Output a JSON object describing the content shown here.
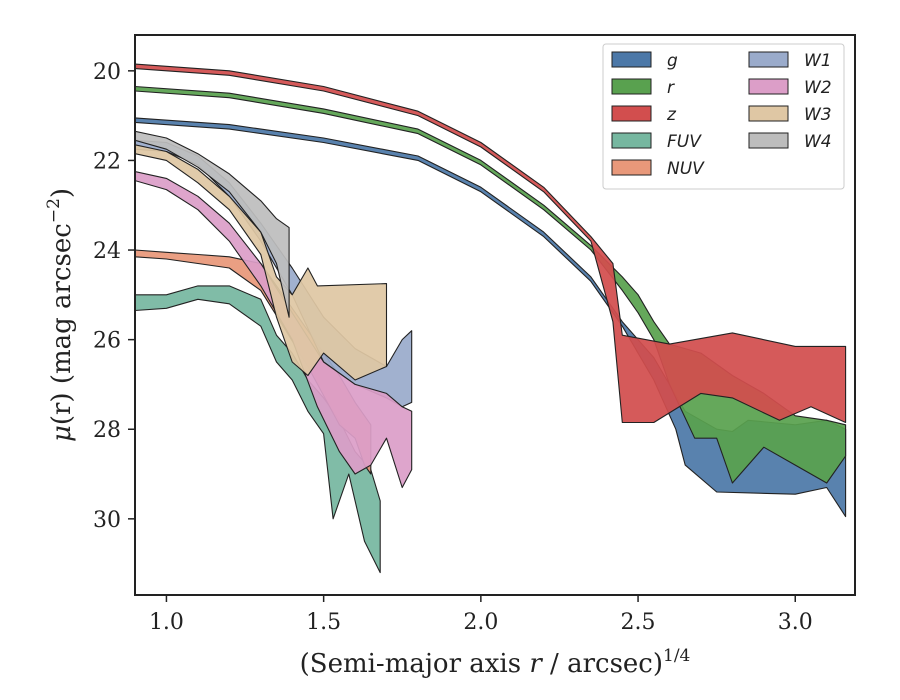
{
  "chart_data": {
    "type": "area",
    "xlabel_main": "(Semi-major axis ",
    "xlabel_var": "r",
    "xlabel_rest": " / arcsec)",
    "xlabel_sup": "1/4",
    "ylabel_mu": "μ",
    "ylabel_rest": "(r) (mag arcsec",
    "ylabel_sup": "−2",
    "ylabel_close": ")",
    "xlim": [
      0.9,
      3.19
    ],
    "ylim": [
      31.7,
      19.2
    ],
    "xticks": [
      1.0,
      1.5,
      2.0,
      2.5,
      3.0
    ],
    "xtick_labels": [
      "1.0",
      "1.5",
      "2.0",
      "2.5",
      "3.0"
    ],
    "yticks": [
      20,
      22,
      24,
      26,
      28,
      30
    ],
    "ytick_labels": [
      "20",
      "22",
      "24",
      "26",
      "28",
      "30"
    ],
    "legend_position": "top-right",
    "series": [
      {
        "name": "g",
        "color": "#4c78a8",
        "upper": [
          [
            0.9,
            21.05
          ],
          [
            1.2,
            21.2
          ],
          [
            1.5,
            21.5
          ],
          [
            1.8,
            21.9
          ],
          [
            2.0,
            22.6
          ],
          [
            2.2,
            23.6
          ],
          [
            2.35,
            24.6
          ],
          [
            2.45,
            25.6
          ],
          [
            2.55,
            26.4
          ],
          [
            2.65,
            27.6
          ],
          [
            2.75,
            28.0
          ],
          [
            2.8,
            28.05
          ],
          [
            2.85,
            27.8
          ],
          [
            3.0,
            27.9
          ],
          [
            3.1,
            27.8
          ],
          [
            3.16,
            28.0
          ]
        ],
        "lower": [
          [
            0.9,
            21.15
          ],
          [
            1.2,
            21.3
          ],
          [
            1.5,
            21.6
          ],
          [
            1.8,
            22.0
          ],
          [
            2.0,
            22.7
          ],
          [
            2.2,
            23.7
          ],
          [
            2.35,
            24.7
          ],
          [
            2.45,
            25.7
          ],
          [
            2.55,
            26.9
          ],
          [
            2.62,
            28.0
          ],
          [
            2.65,
            28.8
          ],
          [
            2.75,
            29.4
          ],
          [
            3.0,
            29.45
          ],
          [
            3.1,
            29.3
          ],
          [
            3.16,
            29.95
          ]
        ]
      },
      {
        "name": "r",
        "color": "#59a14f",
        "upper": [
          [
            0.9,
            20.35
          ],
          [
            1.2,
            20.5
          ],
          [
            1.5,
            20.85
          ],
          [
            1.8,
            21.3
          ],
          [
            2.0,
            22.0
          ],
          [
            2.2,
            23.0
          ],
          [
            2.35,
            23.9
          ],
          [
            2.45,
            24.6
          ],
          [
            2.5,
            25.0
          ],
          [
            2.55,
            25.6
          ],
          [
            2.6,
            26.1
          ],
          [
            2.7,
            26.3
          ],
          [
            2.8,
            26.8
          ],
          [
            2.9,
            27.2
          ],
          [
            3.0,
            27.7
          ],
          [
            3.1,
            27.8
          ],
          [
            3.16,
            27.9
          ]
        ],
        "lower": [
          [
            0.9,
            20.45
          ],
          [
            1.2,
            20.6
          ],
          [
            1.5,
            20.95
          ],
          [
            1.8,
            21.4
          ],
          [
            2.0,
            22.1
          ],
          [
            2.2,
            23.1
          ],
          [
            2.35,
            24.0
          ],
          [
            2.45,
            24.9
          ],
          [
            2.5,
            25.4
          ],
          [
            2.55,
            26.0
          ],
          [
            2.6,
            27.0
          ],
          [
            2.68,
            28.2
          ],
          [
            2.75,
            28.2
          ],
          [
            2.8,
            29.2
          ],
          [
            2.9,
            28.4
          ],
          [
            3.0,
            28.8
          ],
          [
            3.1,
            29.2
          ],
          [
            3.16,
            28.6
          ]
        ]
      },
      {
        "name": "z",
        "color": "#d24e4e",
        "upper": [
          [
            0.9,
            19.85
          ],
          [
            1.2,
            20.0
          ],
          [
            1.5,
            20.35
          ],
          [
            1.8,
            20.9
          ],
          [
            2.0,
            21.6
          ],
          [
            2.2,
            22.6
          ],
          [
            2.35,
            23.7
          ],
          [
            2.42,
            24.3
          ],
          [
            2.45,
            25.9
          ],
          [
            2.6,
            26.1
          ],
          [
            2.8,
            25.85
          ],
          [
            3.0,
            26.15
          ],
          [
            3.16,
            26.15
          ]
        ],
        "lower": [
          [
            0.9,
            19.95
          ],
          [
            1.2,
            20.1
          ],
          [
            1.5,
            20.45
          ],
          [
            1.8,
            21.0
          ],
          [
            2.0,
            21.7
          ],
          [
            2.2,
            22.7
          ],
          [
            2.35,
            23.8
          ],
          [
            2.42,
            25.6
          ],
          [
            2.45,
            27.85
          ],
          [
            2.55,
            27.85
          ],
          [
            2.7,
            27.2
          ],
          [
            2.8,
            27.3
          ],
          [
            2.95,
            27.8
          ],
          [
            3.05,
            27.5
          ],
          [
            3.16,
            27.85
          ]
        ]
      },
      {
        "name": "FUV",
        "color": "#76b7a0",
        "upper": [
          [
            0.9,
            25.0
          ],
          [
            1.0,
            25.0
          ],
          [
            1.1,
            24.8
          ],
          [
            1.2,
            24.8
          ],
          [
            1.3,
            25.1
          ],
          [
            1.35,
            25.9
          ],
          [
            1.4,
            26.3
          ],
          [
            1.45,
            26.9
          ],
          [
            1.5,
            27.3
          ],
          [
            1.55,
            27.8
          ],
          [
            1.6,
            28.5
          ],
          [
            1.65,
            28.9
          ],
          [
            1.68,
            29.6
          ]
        ],
        "lower": [
          [
            0.9,
            25.35
          ],
          [
            1.0,
            25.3
          ],
          [
            1.1,
            25.1
          ],
          [
            1.2,
            25.2
          ],
          [
            1.3,
            25.7
          ],
          [
            1.35,
            26.5
          ],
          [
            1.4,
            26.9
          ],
          [
            1.45,
            27.6
          ],
          [
            1.5,
            28.1
          ],
          [
            1.53,
            30.0
          ],
          [
            1.58,
            29.0
          ],
          [
            1.63,
            30.5
          ],
          [
            1.68,
            31.2
          ]
        ]
      },
      {
        "name": "NUV",
        "color": "#e8987a",
        "upper": [
          [
            0.9,
            24.0
          ],
          [
            1.0,
            24.05
          ],
          [
            1.1,
            24.1
          ],
          [
            1.2,
            24.15
          ],
          [
            1.3,
            24.3
          ],
          [
            1.38,
            25.1
          ],
          [
            1.45,
            25.8
          ],
          [
            1.55,
            26.8
          ],
          [
            1.6,
            27.4
          ],
          [
            1.65,
            27.9
          ]
        ],
        "lower": [
          [
            0.9,
            24.15
          ],
          [
            1.0,
            24.2
          ],
          [
            1.1,
            24.3
          ],
          [
            1.2,
            24.4
          ],
          [
            1.3,
            24.9
          ],
          [
            1.38,
            25.8
          ],
          [
            1.45,
            26.6
          ],
          [
            1.55,
            27.9
          ],
          [
            1.6,
            28.2
          ],
          [
            1.63,
            28.8
          ],
          [
            1.65,
            29.0
          ]
        ]
      },
      {
        "name": "W1",
        "color": "#9aabcb",
        "upper": [
          [
            0.9,
            21.55
          ],
          [
            1.0,
            21.6
          ],
          [
            1.1,
            21.9
          ],
          [
            1.2,
            22.5
          ],
          [
            1.3,
            23.4
          ],
          [
            1.4,
            24.4
          ],
          [
            1.5,
            25.5
          ],
          [
            1.6,
            26.2
          ],
          [
            1.7,
            26.6
          ],
          [
            1.75,
            26.0
          ],
          [
            1.78,
            25.8
          ]
        ],
        "lower": [
          [
            0.9,
            21.75
          ],
          [
            1.0,
            21.8
          ],
          [
            1.1,
            22.1
          ],
          [
            1.2,
            22.8
          ],
          [
            1.3,
            23.8
          ],
          [
            1.4,
            25.0
          ],
          [
            1.5,
            26.5
          ],
          [
            1.6,
            27.0
          ],
          [
            1.7,
            27.3
          ],
          [
            1.75,
            27.5
          ],
          [
            1.78,
            27.4
          ]
        ]
      },
      {
        "name": "W2",
        "color": "#dc9ec8",
        "upper": [
          [
            0.9,
            22.25
          ],
          [
            1.0,
            22.4
          ],
          [
            1.1,
            22.8
          ],
          [
            1.2,
            23.4
          ],
          [
            1.3,
            24.3
          ],
          [
            1.4,
            25.4
          ],
          [
            1.5,
            26.5
          ],
          [
            1.6,
            27.0
          ],
          [
            1.7,
            27.2
          ],
          [
            1.75,
            27.5
          ],
          [
            1.78,
            27.6
          ]
        ],
        "lower": [
          [
            0.9,
            22.45
          ],
          [
            1.0,
            22.65
          ],
          [
            1.1,
            23.1
          ],
          [
            1.2,
            23.8
          ],
          [
            1.3,
            24.8
          ],
          [
            1.4,
            26.0
          ],
          [
            1.48,
            27.5
          ],
          [
            1.55,
            28.5
          ],
          [
            1.6,
            29.0
          ],
          [
            1.65,
            28.8
          ],
          [
            1.7,
            28.2
          ],
          [
            1.75,
            29.3
          ],
          [
            1.78,
            28.9
          ]
        ]
      },
      {
        "name": "W3",
        "color": "#dfc7a4",
        "upper": [
          [
            0.9,
            21.65
          ],
          [
            1.0,
            21.8
          ],
          [
            1.1,
            22.2
          ],
          [
            1.2,
            22.8
          ],
          [
            1.3,
            23.6
          ],
          [
            1.35,
            24.6
          ],
          [
            1.4,
            25.0
          ],
          [
            1.45,
            24.4
          ],
          [
            1.48,
            24.8
          ],
          [
            1.7,
            24.75
          ]
        ],
        "lower": [
          [
            0.9,
            21.85
          ],
          [
            1.0,
            22.0
          ],
          [
            1.1,
            22.5
          ],
          [
            1.2,
            23.1
          ],
          [
            1.3,
            24.1
          ],
          [
            1.35,
            25.5
          ],
          [
            1.4,
            26.5
          ],
          [
            1.45,
            26.8
          ],
          [
            1.5,
            26.3
          ],
          [
            1.6,
            26.9
          ],
          [
            1.7,
            26.6
          ]
        ]
      },
      {
        "name": "W4",
        "color": "#bdbdbd",
        "upper": [
          [
            0.9,
            21.35
          ],
          [
            1.0,
            21.5
          ],
          [
            1.1,
            21.85
          ],
          [
            1.2,
            22.3
          ],
          [
            1.3,
            22.9
          ],
          [
            1.35,
            23.3
          ],
          [
            1.39,
            23.5
          ]
        ],
        "lower": [
          [
            0.9,
            21.55
          ],
          [
            1.0,
            21.75
          ],
          [
            1.1,
            22.15
          ],
          [
            1.2,
            22.7
          ],
          [
            1.3,
            23.6
          ],
          [
            1.35,
            24.3
          ],
          [
            1.39,
            25.5
          ]
        ]
      }
    ]
  }
}
